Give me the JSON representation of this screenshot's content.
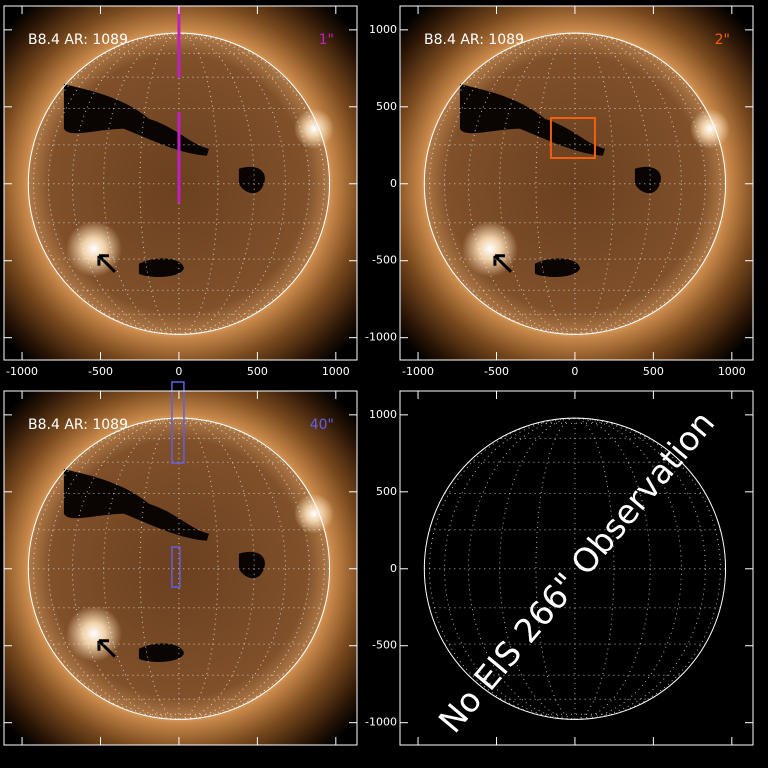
{
  "panels": [
    {
      "label": "B8.4 AR: 1089",
      "slit": "1\"",
      "slit_color": "#c020c0"
    },
    {
      "label": "B8.4 AR: 1089",
      "slit": "2\"",
      "slit_color": "#f06010"
    },
    {
      "label": "B8.4 AR: 1089",
      "slit": "40\"",
      "slit_color": "#6060e0"
    },
    {
      "message": "No EIS 266\" Observation"
    }
  ],
  "axes": {
    "xlim": [
      -1115,
      1135
    ],
    "ylim": [
      -1145,
      1155
    ],
    "xticks": [
      -1000,
      -500,
      0,
      500,
      1000
    ],
    "yticks": [
      -1000,
      -500,
      0,
      500,
      1000
    ]
  }
}
